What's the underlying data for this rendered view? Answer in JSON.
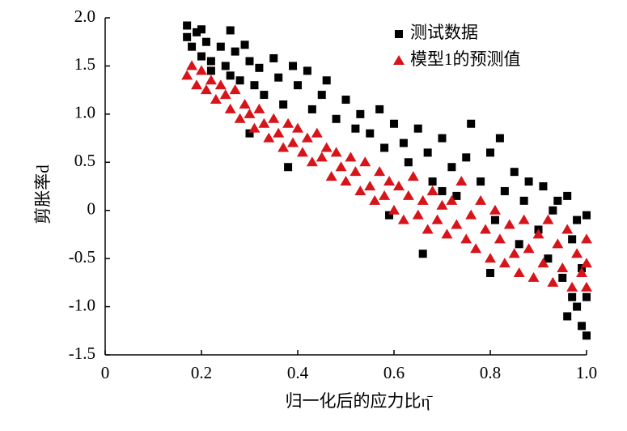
{
  "chart_data": {
    "type": "scatter",
    "x_label": "归一化后的应力比η̄",
    "y_label": "剪胀率d",
    "xlim": [
      0,
      1.0
    ],
    "ylim": [
      -1.5,
      2.0
    ],
    "xticks": [
      0,
      0.2,
      0.4,
      0.6,
      0.8,
      {
        "value": 1.0,
        "label": "1.0"
      }
    ],
    "yticks": [
      {
        "value": -1.5,
        "label": "-1.5"
      },
      {
        "value": -1.0,
        "label": "-1.0"
      },
      {
        "value": -0.5,
        "label": "-0.5"
      },
      0,
      {
        "value": 0.5,
        "label": "0.5"
      },
      {
        "value": 1.0,
        "label": "1.0"
      },
      {
        "value": 1.5,
        "label": "1.5"
      },
      {
        "value": 2.0,
        "label": "2.0"
      }
    ],
    "legend": "upper right",
    "series": [
      {
        "name": "测试数据",
        "color": "#000000",
        "marker": "square",
        "x": [
          0.17,
          0.17,
          0.18,
          0.19,
          0.2,
          0.2,
          0.21,
          0.22,
          0.22,
          0.24,
          0.25,
          0.26,
          0.26,
          0.27,
          0.28,
          0.29,
          0.3,
          0.31,
          0.32,
          0.33,
          0.35,
          0.36,
          0.37,
          0.38,
          0.39,
          0.4,
          0.42,
          0.43,
          0.45,
          0.46,
          0.48,
          0.5,
          0.52,
          0.53,
          0.55,
          0.57,
          0.58,
          0.6,
          0.62,
          0.63,
          0.65,
          0.66,
          0.67,
          0.68,
          0.7,
          0.72,
          0.73,
          0.75,
          0.76,
          0.78,
          0.8,
          0.81,
          0.82,
          0.83,
          0.85,
          0.86,
          0.87,
          0.88,
          0.9,
          0.91,
          0.92,
          0.93,
          0.94,
          0.95,
          0.96,
          0.97,
          0.97,
          0.98,
          0.98,
          0.99,
          0.99,
          1.0,
          1.0,
          1.0,
          0.96,
          0.3,
          0.59,
          0.7,
          0.8
        ],
        "values": [
          1.92,
          1.8,
          1.7,
          1.85,
          1.88,
          1.6,
          1.75,
          1.55,
          1.45,
          1.7,
          1.5,
          1.87,
          1.4,
          1.65,
          1.35,
          1.72,
          1.55,
          1.3,
          1.48,
          1.2,
          1.58,
          1.38,
          1.1,
          0.45,
          1.5,
          1.3,
          1.45,
          1.05,
          1.2,
          1.35,
          0.95,
          1.15,
          0.85,
          1.0,
          0.8,
          1.05,
          0.65,
          0.9,
          0.7,
          0.5,
          0.85,
          -0.45,
          0.6,
          0.3,
          0.75,
          0.45,
          0.15,
          0.55,
          0.9,
          0.3,
          0.6,
          -0.1,
          0.75,
          0.2,
          0.4,
          -0.35,
          0.1,
          0.3,
          -0.2,
          0.25,
          -0.5,
          0.0,
          0.1,
          -0.7,
          0.15,
          -0.9,
          -0.3,
          -1.0,
          -0.1,
          -1.2,
          -0.6,
          -1.3,
          -0.9,
          -0.05,
          -1.1,
          0.8,
          -0.05,
          0.2,
          -0.65
        ]
      },
      {
        "name": "模型1的预测值",
        "color": "#d7141a",
        "marker": "triangle",
        "x": [
          0.17,
          0.18,
          0.19,
          0.2,
          0.21,
          0.22,
          0.23,
          0.24,
          0.25,
          0.26,
          0.27,
          0.28,
          0.29,
          0.3,
          0.31,
          0.32,
          0.33,
          0.34,
          0.35,
          0.36,
          0.37,
          0.38,
          0.39,
          0.4,
          0.41,
          0.42,
          0.43,
          0.44,
          0.45,
          0.46,
          0.47,
          0.48,
          0.49,
          0.5,
          0.51,
          0.52,
          0.53,
          0.54,
          0.55,
          0.56,
          0.57,
          0.58,
          0.59,
          0.6,
          0.61,
          0.62,
          0.63,
          0.64,
          0.65,
          0.66,
          0.67,
          0.68,
          0.69,
          0.7,
          0.71,
          0.72,
          0.73,
          0.74,
          0.75,
          0.76,
          0.77,
          0.78,
          0.79,
          0.8,
          0.81,
          0.82,
          0.83,
          0.84,
          0.85,
          0.86,
          0.87,
          0.88,
          0.89,
          0.9,
          0.91,
          0.92,
          0.93,
          0.94,
          0.95,
          0.96,
          0.97,
          0.98,
          0.99,
          1.0,
          1.0,
          1.0
        ],
        "values": [
          1.4,
          1.5,
          1.3,
          1.45,
          1.25,
          1.35,
          1.15,
          1.3,
          1.2,
          1.05,
          1.25,
          0.95,
          1.1,
          1.0,
          0.85,
          1.05,
          0.9,
          0.75,
          0.95,
          0.8,
          0.65,
          0.9,
          0.7,
          0.85,
          0.6,
          0.75,
          0.5,
          0.8,
          0.55,
          0.65,
          0.35,
          0.6,
          0.45,
          0.3,
          0.55,
          0.4,
          0.2,
          0.5,
          0.25,
          0.1,
          0.4,
          0.15,
          0.3,
          0.0,
          0.25,
          -0.1,
          0.15,
          0.35,
          -0.05,
          0.1,
          -0.2,
          0.2,
          -0.1,
          0.05,
          -0.25,
          0.1,
          -0.15,
          0.3,
          -0.3,
          -0.05,
          -0.4,
          0.1,
          -0.2,
          -0.5,
          0.0,
          -0.3,
          -0.55,
          -0.15,
          -0.45,
          -0.65,
          -0.1,
          -0.4,
          -0.7,
          -0.25,
          -0.55,
          -0.1,
          -0.75,
          -0.35,
          -0.6,
          -0.2,
          -0.8,
          -0.45,
          -0.65,
          -0.3,
          -0.8,
          -0.55
        ]
      }
    ]
  }
}
